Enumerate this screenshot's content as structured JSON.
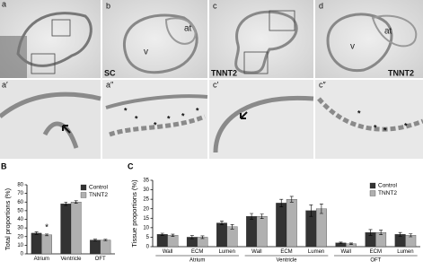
{
  "micrographs": [
    {
      "label": "a",
      "annotations": []
    },
    {
      "label": "b",
      "annotations": [
        "at",
        "v",
        "SC"
      ]
    },
    {
      "label": "c",
      "annotations": [
        "TNNT2"
      ]
    },
    {
      "label": "d",
      "annotations": [
        "at",
        "v",
        "TNNT2"
      ]
    },
    {
      "label": "a′",
      "annotations": []
    },
    {
      "label": "a″",
      "annotations": [
        "*",
        "*",
        "*",
        "*",
        "*",
        "*"
      ]
    },
    {
      "label": "c′",
      "annotations": []
    },
    {
      "label": "c″",
      "annotations": [
        "*",
        "*",
        "*",
        "*"
      ]
    }
  ],
  "chart_data": [
    {
      "type": "bar",
      "panel": "B",
      "y_label": "Total proportions (%)",
      "categories": [
        "Atrium",
        "Ventricle",
        "OFT"
      ],
      "series": [
        {
          "name": "Control",
          "color": "#333333",
          "values": [
            24,
            58,
            16
          ],
          "errors": [
            1.5,
            2,
            1
          ]
        },
        {
          "name": "TNNT2",
          "color": "#b0b0b0",
          "values": [
            22,
            60,
            16
          ],
          "errors": [
            1,
            1.5,
            0.8
          ]
        }
      ],
      "annotations": [
        {
          "text": "*",
          "category": "Atrium",
          "series": "TNNT2"
        }
      ],
      "ylim": [
        0,
        80
      ],
      "yticks": [
        0,
        10,
        20,
        30,
        40,
        50,
        60,
        70,
        80
      ],
      "legend": "top-right"
    },
    {
      "type": "bar",
      "panel": "C",
      "y_label": "Tissue proportions (%)",
      "groups": [
        {
          "label": "Atrium",
          "categories": [
            "Wall",
            "ECM",
            "Lumen"
          ]
        },
        {
          "label": "Ventricle",
          "categories": [
            "Wall",
            "ECM",
            "Lumen"
          ]
        },
        {
          "label": "OFT",
          "categories": [
            "Wall",
            "ECM",
            "Lumen"
          ]
        }
      ],
      "series": [
        {
          "name": "Control",
          "color": "#333333",
          "values": [
            6.5,
            5,
            12.5,
            16,
            23,
            19,
            2,
            7.5,
            6.5
          ],
          "errors": [
            0.6,
            0.8,
            1,
            1.5,
            2,
            3,
            0.4,
            1.5,
            1
          ]
        },
        {
          "name": "TNNT2",
          "color": "#b0b0b0",
          "values": [
            6,
            5,
            10.5,
            16,
            25,
            20,
            1.5,
            7.5,
            6
          ],
          "errors": [
            0.6,
            0.7,
            1.2,
            1.2,
            1.5,
            2.5,
            0.4,
            1.2,
            0.8
          ]
        }
      ],
      "ylim": [
        0,
        35
      ],
      "yticks": [
        0,
        5,
        10,
        15,
        20,
        25,
        30,
        35
      ],
      "legend": "top-right"
    }
  ]
}
